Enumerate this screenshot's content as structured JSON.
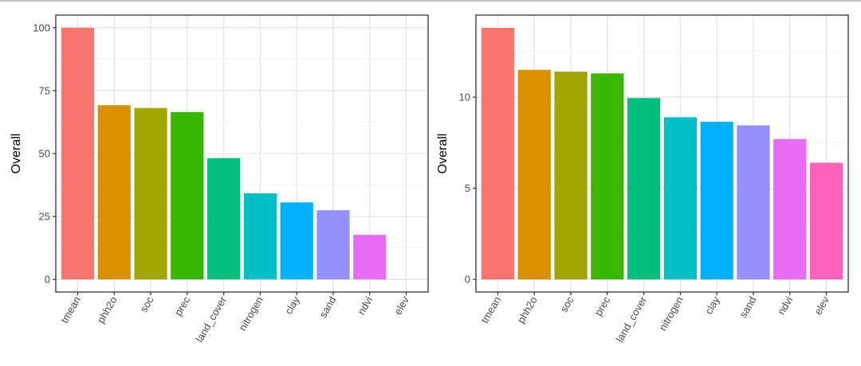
{
  "colors": {
    "tmean": "#F8766D",
    "phh2o": "#D89000",
    "soc": "#A3A500",
    "prec": "#39B600",
    "land_cover": "#00BF7D",
    "nitrogen": "#00BFC4",
    "clay": "#00B0F6",
    "sand": "#9590FF",
    "ndvi": "#E76BF3",
    "elev": "#FF62BC"
  },
  "chart_data": [
    {
      "type": "bar",
      "categories": [
        "tmean",
        "phh2o",
        "soc",
        "prec",
        "land_cover",
        "nitrogen",
        "clay",
        "sand",
        "ndvi",
        "elev"
      ],
      "values": [
        100,
        69.2,
        68.1,
        66.5,
        48.2,
        34.2,
        30.6,
        27.5,
        17.7,
        0
      ],
      "ylabel": "Overall",
      "yticks": [
        0,
        25,
        50,
        75,
        100
      ],
      "ytick_labels": [
        "0",
        "25",
        "50",
        "75",
        "100"
      ],
      "ylim": [
        -5,
        105
      ],
      "grid": true
    },
    {
      "type": "bar",
      "categories": [
        "tmean",
        "phh2o",
        "soc",
        "prec",
        "land_cover",
        "nitrogen",
        "clay",
        "sand",
        "ndvi",
        "elev"
      ],
      "values": [
        13.8,
        11.5,
        11.4,
        11.3,
        9.95,
        8.9,
        8.65,
        8.45,
        7.7,
        6.4
      ],
      "ylabel": "Overall",
      "yticks": [
        0,
        5,
        10
      ],
      "ytick_labels": [
        "0",
        "5",
        "10"
      ],
      "ylim": [
        -0.69,
        14.5
      ],
      "grid": true
    }
  ]
}
